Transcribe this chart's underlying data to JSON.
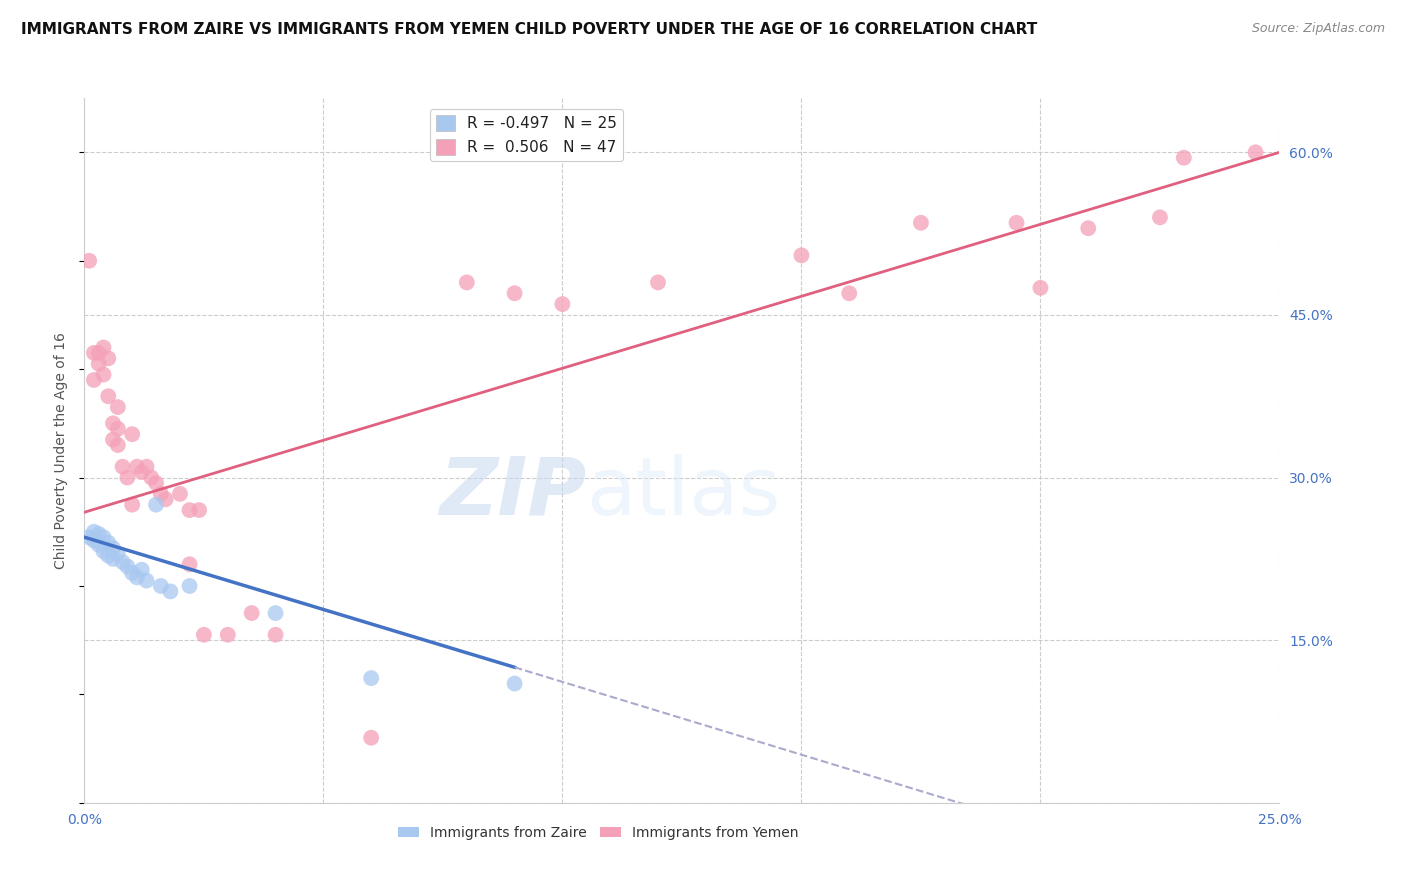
{
  "title": "IMMIGRANTS FROM ZAIRE VS IMMIGRANTS FROM YEMEN CHILD POVERTY UNDER THE AGE OF 16 CORRELATION CHART",
  "source": "Source: ZipAtlas.com",
  "ylabel": "Child Poverty Under the Age of 16",
  "watermark_zip": "ZIP",
  "watermark_atlas": "atlas",
  "xlim": [
    0.0,
    0.25
  ],
  "ylim": [
    0.0,
    0.65
  ],
  "yticks": [
    0.0,
    0.15,
    0.3,
    0.45,
    0.6
  ],
  "ytick_labels_right": [
    "",
    "15.0%",
    "30.0%",
    "45.0%",
    "60.0%"
  ],
  "xticks": [
    0.0,
    0.05,
    0.1,
    0.15,
    0.2,
    0.25
  ],
  "xtick_labels": [
    "0.0%",
    "",
    "",
    "",
    "",
    "25.0%"
  ],
  "legend_entries": [
    {
      "label": "R = -0.497   N = 25",
      "color": "#a8c8f0"
    },
    {
      "label": "R =  0.506   N = 47",
      "color": "#f4a0b8"
    }
  ],
  "zaire_scatter": [
    [
      0.001,
      0.245
    ],
    [
      0.002,
      0.25
    ],
    [
      0.002,
      0.242
    ],
    [
      0.003,
      0.248
    ],
    [
      0.003,
      0.238
    ],
    [
      0.004,
      0.245
    ],
    [
      0.004,
      0.232
    ],
    [
      0.005,
      0.24
    ],
    [
      0.005,
      0.228
    ],
    [
      0.006,
      0.235
    ],
    [
      0.006,
      0.225
    ],
    [
      0.007,
      0.23
    ],
    [
      0.008,
      0.222
    ],
    [
      0.009,
      0.218
    ],
    [
      0.01,
      0.212
    ],
    [
      0.011,
      0.208
    ],
    [
      0.012,
      0.215
    ],
    [
      0.013,
      0.205
    ],
    [
      0.015,
      0.275
    ],
    [
      0.016,
      0.2
    ],
    [
      0.018,
      0.195
    ],
    [
      0.022,
      0.2
    ],
    [
      0.04,
      0.175
    ],
    [
      0.06,
      0.115
    ],
    [
      0.09,
      0.11
    ]
  ],
  "yemen_scatter": [
    [
      0.001,
      0.5
    ],
    [
      0.002,
      0.39
    ],
    [
      0.002,
      0.415
    ],
    [
      0.003,
      0.415
    ],
    [
      0.003,
      0.405
    ],
    [
      0.004,
      0.42
    ],
    [
      0.004,
      0.395
    ],
    [
      0.005,
      0.41
    ],
    [
      0.005,
      0.375
    ],
    [
      0.006,
      0.35
    ],
    [
      0.006,
      0.335
    ],
    [
      0.007,
      0.365
    ],
    [
      0.007,
      0.345
    ],
    [
      0.007,
      0.33
    ],
    [
      0.008,
      0.31
    ],
    [
      0.009,
      0.3
    ],
    [
      0.01,
      0.34
    ],
    [
      0.01,
      0.275
    ],
    [
      0.011,
      0.31
    ],
    [
      0.012,
      0.305
    ],
    [
      0.013,
      0.31
    ],
    [
      0.014,
      0.3
    ],
    [
      0.015,
      0.295
    ],
    [
      0.016,
      0.285
    ],
    [
      0.017,
      0.28
    ],
    [
      0.02,
      0.285
    ],
    [
      0.022,
      0.27
    ],
    [
      0.022,
      0.22
    ],
    [
      0.024,
      0.27
    ],
    [
      0.025,
      0.155
    ],
    [
      0.03,
      0.155
    ],
    [
      0.035,
      0.175
    ],
    [
      0.04,
      0.155
    ],
    [
      0.06,
      0.06
    ],
    [
      0.08,
      0.48
    ],
    [
      0.09,
      0.47
    ],
    [
      0.1,
      0.46
    ],
    [
      0.12,
      0.48
    ],
    [
      0.15,
      0.505
    ],
    [
      0.16,
      0.47
    ],
    [
      0.175,
      0.535
    ],
    [
      0.195,
      0.535
    ],
    [
      0.2,
      0.475
    ],
    [
      0.21,
      0.53
    ],
    [
      0.225,
      0.54
    ],
    [
      0.23,
      0.595
    ],
    [
      0.245,
      0.6
    ]
  ],
  "zaire_line_solid": {
    "x": [
      0.0,
      0.09
    ],
    "y": [
      0.245,
      0.125
    ],
    "color": "#4472c4"
  },
  "zaire_line_dashed": {
    "x": [
      0.09,
      0.25
    ],
    "y": [
      0.125,
      -0.09
    ],
    "color": "#aaaacc"
  },
  "yemen_line": {
    "x": [
      0.0,
      0.25
    ],
    "y": [
      0.268,
      0.6
    ],
    "color": "#e06080"
  },
  "scatter_color_zaire": "#a8c8f0",
  "scatter_color_yemen": "#f4a0b8",
  "scatter_alpha": 0.75,
  "scatter_size": 130,
  "background_color": "#ffffff",
  "grid_color": "#cccccc",
  "tick_color": "#4472c4",
  "title_fontsize": 11,
  "axis_label_fontsize": 10,
  "tick_fontsize": 10,
  "legend_fontsize": 10
}
